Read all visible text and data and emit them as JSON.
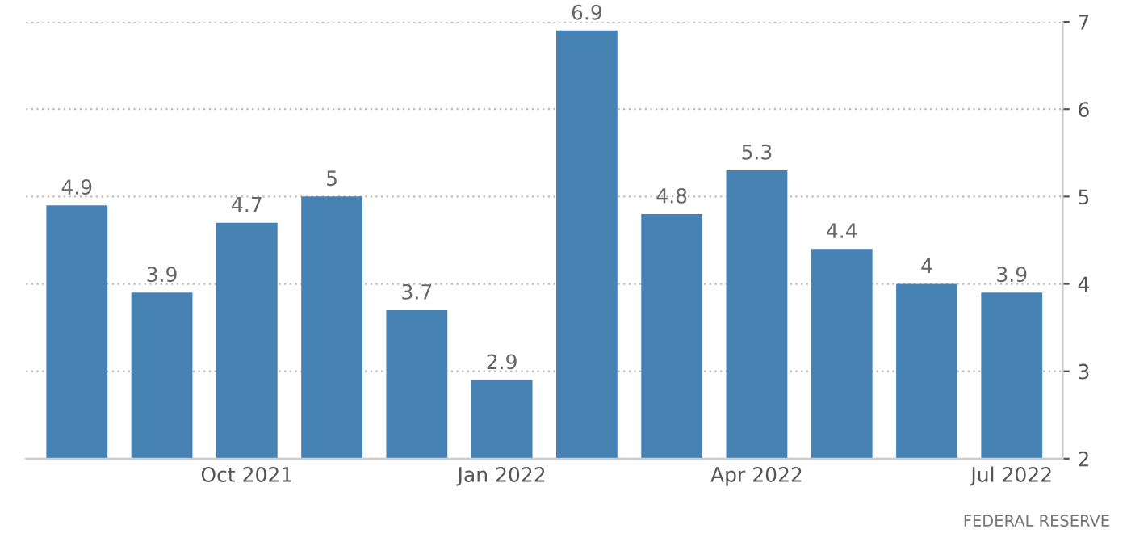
{
  "chart_data": {
    "type": "bar",
    "categories": [
      null,
      null,
      "Oct 2021",
      null,
      null,
      "Jan 2022",
      null,
      null,
      "Apr 2022",
      null,
      null,
      "Jul 2022"
    ],
    "values": [
      4.9,
      3.9,
      4.7,
      5,
      3.7,
      2.9,
      6.9,
      4.8,
      5.3,
      4.4,
      4,
      3.9
    ],
    "color": "#4682b4",
    "ylim": [
      2,
      7
    ],
    "yticks": [
      2,
      3,
      4,
      5,
      6,
      7
    ],
    "grid": "y",
    "data_labels": true,
    "legend": false,
    "annotations": [
      "FEDERAL RESERVE"
    ]
  }
}
